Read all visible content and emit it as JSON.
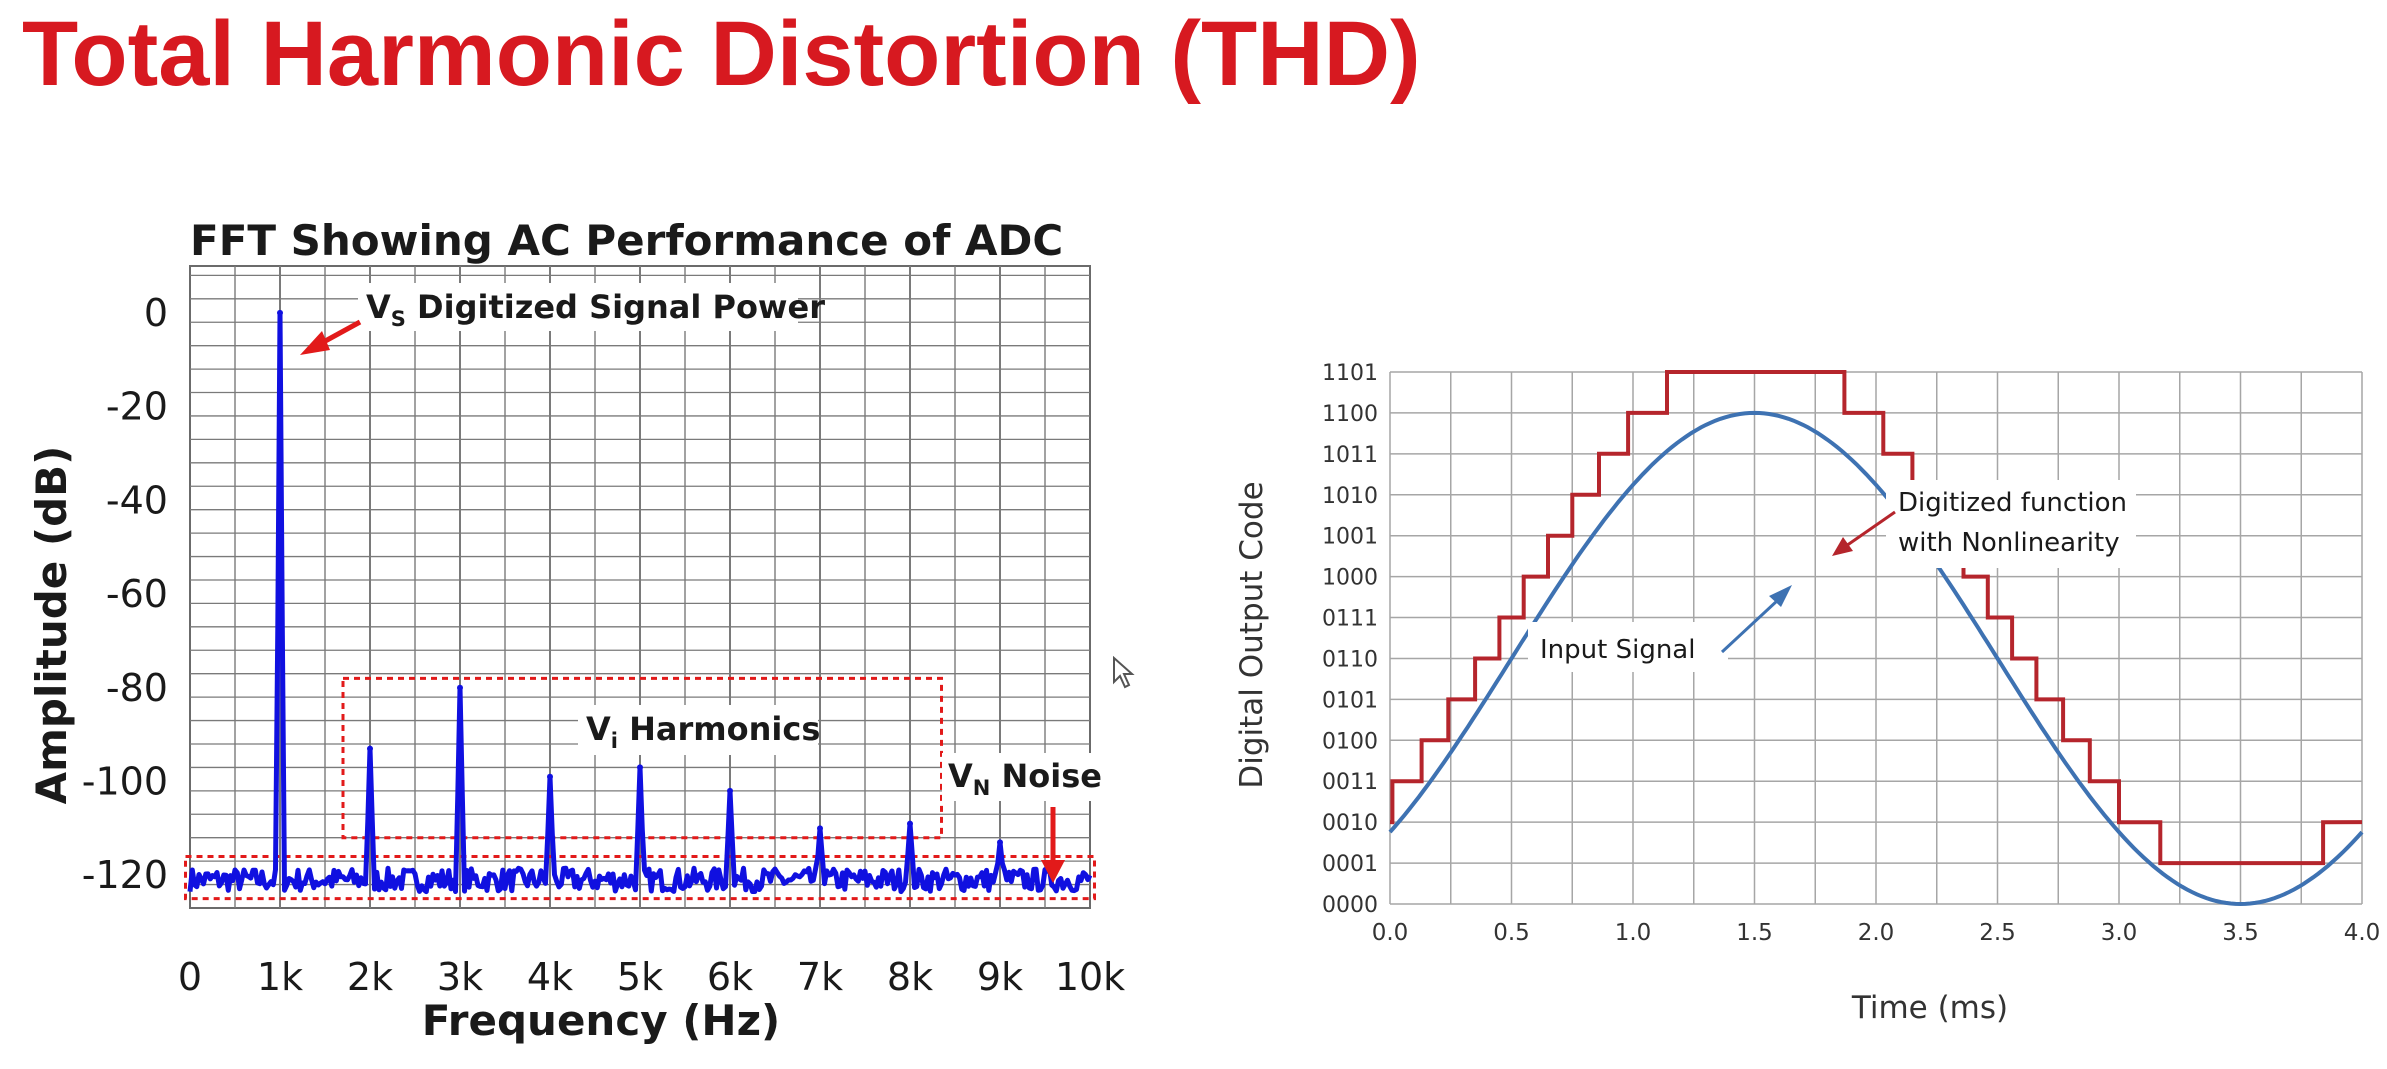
{
  "slide": {
    "title": "Total Harmonic Distortion (THD)"
  },
  "chart_data": [
    {
      "type": "line",
      "title": "FFT Showing AC Performance of ADC",
      "xlabel": "Frequency (Hz)",
      "ylabel": "Amplitude (dB)",
      "xlim": [
        0,
        10000
      ],
      "ylim": [
        -127,
        10
      ],
      "x_ticks": [
        {
          "value": 0,
          "label": "0"
        },
        {
          "value": 1000,
          "label": "1k"
        },
        {
          "value": 2000,
          "label": "2k"
        },
        {
          "value": 3000,
          "label": "3k"
        },
        {
          "value": 4000,
          "label": "4k"
        },
        {
          "value": 5000,
          "label": "5k"
        },
        {
          "value": 6000,
          "label": "6k"
        },
        {
          "value": 7000,
          "label": "7k"
        },
        {
          "value": 8000,
          "label": "8k"
        },
        {
          "value": 9000,
          "label": "9k"
        },
        {
          "value": 10000,
          "label": "10k"
        }
      ],
      "y_ticks": [
        {
          "value": 0,
          "label": "0"
        },
        {
          "value": -20,
          "label": "-20"
        },
        {
          "value": -40,
          "label": "-40"
        },
        {
          "value": -60,
          "label": "-60"
        },
        {
          "value": -80,
          "label": "-80"
        },
        {
          "value": -100,
          "label": "-100"
        },
        {
          "value": -120,
          "label": "-120"
        }
      ],
      "grid": true,
      "series_color": "#1010e0",
      "noise_floor_db": -121,
      "peaks": [
        {
          "x": 1000,
          "y": 0
        },
        {
          "x": 2000,
          "y": -93
        },
        {
          "x": 3000,
          "y": -80
        },
        {
          "x": 4000,
          "y": -99
        },
        {
          "x": 5000,
          "y": -97
        },
        {
          "x": 6000,
          "y": -102
        },
        {
          "x": 7000,
          "y": -110
        },
        {
          "x": 8000,
          "y": -109
        },
        {
          "x": 9000,
          "y": -113
        }
      ],
      "annotations": {
        "signal": {
          "main": "V",
          "sub": "S",
          "rest": " Digitized Signal Power"
        },
        "harmonics": {
          "main": "V",
          "sub": "i",
          "rest": " Harmonics"
        },
        "noise": {
          "main": "V",
          "sub": "N",
          "rest": " Noise"
        }
      },
      "harmonics_box": {
        "x": [
          1700,
          8350
        ],
        "y": [
          -112,
          -78
        ]
      },
      "noise_box": {
        "x": [
          -50,
          10050
        ],
        "y": [
          -125,
          -116
        ]
      },
      "annotation_color": "#e21a1a"
    },
    {
      "type": "line",
      "xlabel": "Time (ms)",
      "ylabel": "Digital Output Code",
      "xlim": [
        0,
        4
      ],
      "ylim": [
        0,
        13
      ],
      "x_ticks": [
        "0.0",
        "0.5",
        "1.0",
        "1.5",
        "2.0",
        "2.5",
        "3.0",
        "3.5",
        "4.0"
      ],
      "y_ticks": [
        "0000",
        "0001",
        "0010",
        "0011",
        "0100",
        "0101",
        "0110",
        "0111",
        "1000",
        "1001",
        "1010",
        "1011",
        "1100",
        "1101"
      ],
      "grid": true,
      "series": [
        {
          "name": "Input Signal",
          "color": "#3e72b2",
          "function": "6 + 6*sin(2*pi*(t - 0.5)/4)"
        },
        {
          "name": "Digitized function with Nonlinearity",
          "color": "#b5252c"
        }
      ],
      "annotations": {
        "input": "Input Signal",
        "digitized_line1": "Digitized function",
        "digitized_line2": "with Nonlinearity"
      }
    }
  ]
}
